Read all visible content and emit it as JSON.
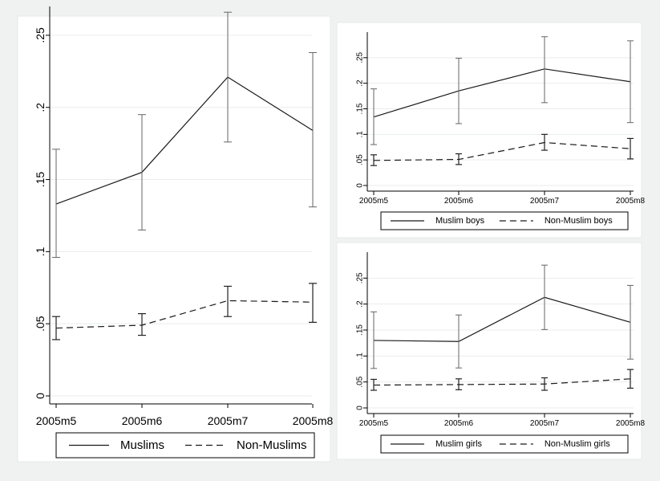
{
  "chart_data": [
    {
      "type": "line",
      "categories": [
        "2005m5",
        "2005m6",
        "2005m7",
        "2005m8"
      ],
      "yticks": [
        "0",
        ".05",
        ".1",
        ".15",
        ".2",
        ".25"
      ],
      "ylim": [
        0,
        0.27
      ],
      "grid": true,
      "legend_position": "bottom",
      "series": [
        {
          "name": "Muslims",
          "style": "solid",
          "values": [
            0.133,
            0.155,
            0.221,
            0.184
          ],
          "ci_low": [
            0.096,
            0.115,
            0.176,
            0.131
          ],
          "ci_high": [
            0.171,
            0.195,
            0.266,
            0.238
          ]
        },
        {
          "name": "Non-Muslims",
          "style": "dashed",
          "values": [
            0.047,
            0.049,
            0.066,
            0.065
          ],
          "ci_low": [
            0.039,
            0.042,
            0.055,
            0.051
          ],
          "ci_high": [
            0.055,
            0.057,
            0.076,
            0.078
          ]
        }
      ]
    },
    {
      "type": "line",
      "categories": [
        "2005m5",
        "2005m6",
        "2005m7",
        "2005m8"
      ],
      "yticks": [
        "0",
        ".05",
        ".1",
        ".15",
        ".2",
        ".25"
      ],
      "ylim": [
        0,
        0.3
      ],
      "grid": true,
      "legend_position": "bottom",
      "series": [
        {
          "name": "Muslim boys",
          "style": "solid",
          "values": [
            0.134,
            0.185,
            0.228,
            0.203
          ],
          "ci_low": [
            0.08,
            0.121,
            0.162,
            0.123
          ],
          "ci_high": [
            0.189,
            0.249,
            0.291,
            0.283
          ]
        },
        {
          "name": "Non-Muslim boys",
          "style": "dashed",
          "values": [
            0.049,
            0.051,
            0.084,
            0.072
          ],
          "ci_low": [
            0.039,
            0.041,
            0.069,
            0.052
          ],
          "ci_high": [
            0.06,
            0.062,
            0.1,
            0.092
          ]
        }
      ]
    },
    {
      "type": "line",
      "categories": [
        "2005m5",
        "2005m6",
        "2005m7",
        "2005m8"
      ],
      "yticks": [
        "0",
        ".05",
        ".1",
        ".15",
        ".2",
        ".25"
      ],
      "ylim": [
        0,
        0.3
      ],
      "grid": true,
      "legend_position": "bottom",
      "series": [
        {
          "name": "Muslim girls",
          "style": "solid",
          "values": [
            0.13,
            0.128,
            0.213,
            0.165
          ],
          "ci_low": [
            0.076,
            0.077,
            0.151,
            0.094
          ],
          "ci_high": [
            0.185,
            0.179,
            0.275,
            0.236
          ]
        },
        {
          "name": "Non-Muslim girls",
          "style": "dashed",
          "values": [
            0.044,
            0.045,
            0.046,
            0.056
          ],
          "ci_low": [
            0.034,
            0.035,
            0.034,
            0.038
          ],
          "ci_high": [
            0.055,
            0.056,
            0.058,
            0.074
          ]
        }
      ]
    }
  ]
}
